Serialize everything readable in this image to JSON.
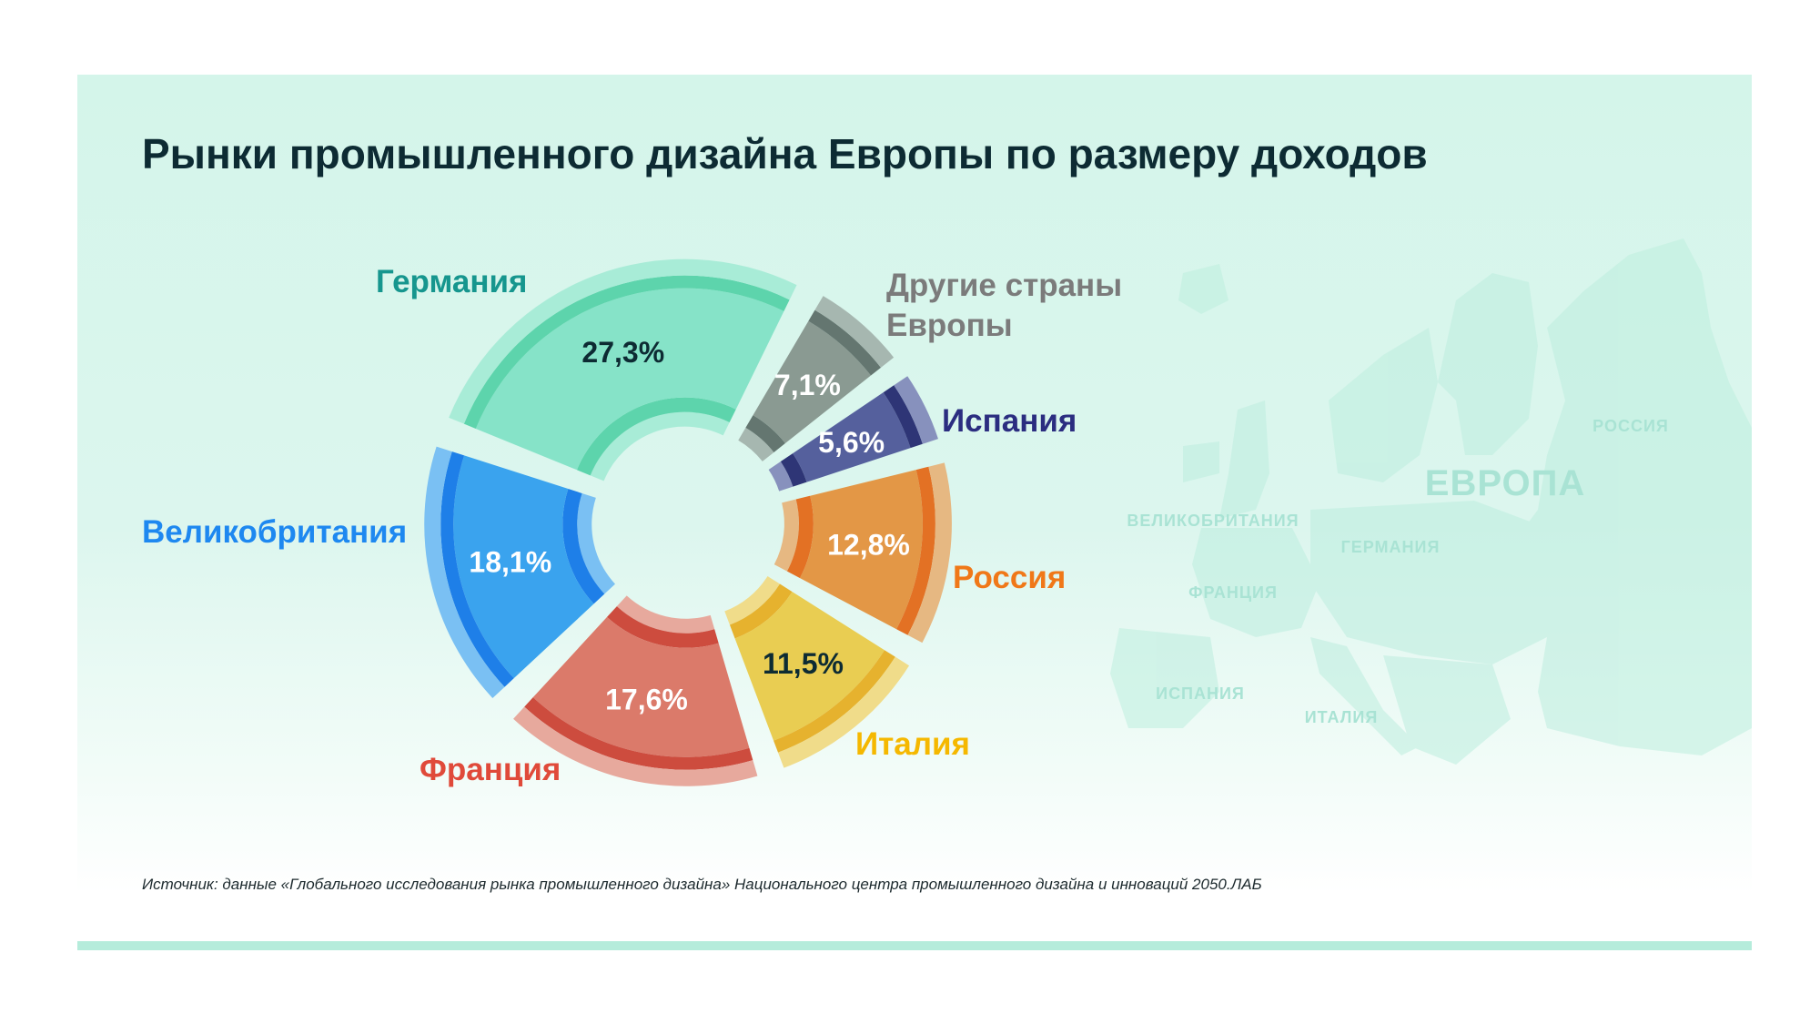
{
  "title": "Рынки промышленного дизайна Европы по размеру доходов",
  "source": "Источник: данные «Глобального исследования рынка промышленного дизайна» Национального центра промышленного дизайна и инноваций 2050.ЛАБ",
  "map_labels": {
    "europe": "ЕВРОПА",
    "russia": "РОССИЯ",
    "uk": "ВЕЛИКОБРИТАНИЯ",
    "germany": "ГЕРМАНИЯ",
    "france": "ФРАНЦИЯ",
    "spain": "ИСПАНИЯ",
    "italy": "ИТАЛИЯ"
  },
  "chart_data": {
    "type": "pie",
    "variant": "exploded-donut",
    "title": "Рынки промышленного дизайна Европы по размеру доходов",
    "unit": "%",
    "slices": [
      {
        "label": "Германия",
        "value": 27.3,
        "value_label": "27,3%",
        "color": "#86e3c8",
        "dark": "#5dd4ac",
        "light": "#a8ecd7",
        "label_color": "#16968e",
        "value_color": "#0d2b33"
      },
      {
        "label": "Другие страны Европы",
        "label_lines": [
          "Другие страны",
          "Европы"
        ],
        "value": 7.1,
        "value_label": "7,1%",
        "color": "#8a9a92",
        "dark": "#647670",
        "light": "#a6b7b0",
        "label_color": "#7b7b7b",
        "value_color": "#ffffff"
      },
      {
        "label": "Испания",
        "value": 5.6,
        "value_label": "5,6%",
        "color": "#55609d",
        "dark": "#2e3576",
        "light": "#8791bd",
        "label_color": "#2b2d80",
        "value_color": "#ffffff"
      },
      {
        "label": "Россия",
        "value": 12.8,
        "value_label": "12,8%",
        "color": "#e39746",
        "dark": "#e37124",
        "light": "#e6b882",
        "label_color": "#f07818",
        "value_color": "#ffffff"
      },
      {
        "label": "Италия",
        "value": 11.5,
        "value_label": "11,5%",
        "color": "#e9cd52",
        "dark": "#e6b22e",
        "light": "#f0dc8a",
        "label_color": "#f5b800",
        "value_color": "#0d2b33"
      },
      {
        "label": "Франция",
        "value": 17.6,
        "value_label": "17,6%",
        "color": "#db7a6a",
        "dark": "#cd4c3e",
        "light": "#e7a99d",
        "label_color": "#e04a3a",
        "value_color": "#ffffff"
      },
      {
        "label": "Великобритания",
        "value": 18.1,
        "value_label": "18,1%",
        "color": "#3aa3ee",
        "dark": "#1e7fe8",
        "light": "#7ac0f3",
        "label_color": "#1e88f0",
        "value_color": "#ffffff"
      }
    ],
    "legend": "labels-around"
  }
}
